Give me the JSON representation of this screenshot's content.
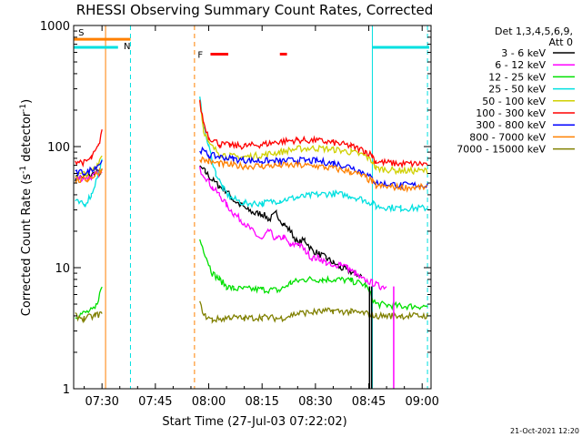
{
  "chart_data": {
    "type": "line",
    "title": "RHESSI Observing Summary Count Rates, Corrected",
    "xlabel": "Start Time (27-Jul-03 07:22:02)",
    "ylabel_main": "Corrected Count Rate (s",
    "ylabel_sup1": "-1",
    "ylabel_mid": " detector",
    "ylabel_sup2": "-1",
    "ylabel_end": ")",
    "yscale": "log",
    "ylim": [
      1,
      1000
    ],
    "xlim_min": [
      442.03,
      542.5
    ],
    "x_ticks": [
      {
        "m": 450,
        "label": "07:30"
      },
      {
        "m": 465,
        "label": "07:45"
      },
      {
        "m": 480,
        "label": "08:00"
      },
      {
        "m": 495,
        "label": "08:15"
      },
      {
        "m": 510,
        "label": "08:30"
      },
      {
        "m": 525,
        "label": "08:45"
      },
      {
        "m": 540,
        "label": "09:00"
      }
    ],
    "y_ticks": [
      {
        "v": 1,
        "label": "1"
      },
      {
        "v": 10,
        "label": "10"
      },
      {
        "v": 100,
        "label": "100"
      },
      {
        "v": 1000,
        "label": "1000"
      }
    ],
    "legend": {
      "header1": "Det 1,3,4,5,6,9,",
      "header2": "Att 0",
      "entries": [
        {
          "label": "3 - 6 keV",
          "color": "#000000"
        },
        {
          "label": "6 - 12 keV",
          "color": "#ff00ff"
        },
        {
          "label": "12 - 25 keV",
          "color": "#00e000"
        },
        {
          "label": "25 - 50 keV",
          "color": "#00e0e0"
        },
        {
          "label": "50 - 100 keV",
          "color": "#d0d000"
        },
        {
          "label": "100 - 300 keV",
          "color": "#ff0000"
        },
        {
          "label": "300 - 800 keV",
          "color": "#0000ff"
        },
        {
          "label": "800 - 7000 keV",
          "color": "#ff8000"
        },
        {
          "label": "7000 - 15000 keV",
          "color": "#808000"
        }
      ]
    },
    "flags": {
      "saa_label": "S",
      "saa_range": [
        442.03,
        458.0
      ],
      "saa_value": 770,
      "saa_color": "#ff8000",
      "night_label": "N",
      "night_ranges": [
        [
          442.03,
          454.5
        ],
        [
          526.0,
          542.0
        ]
      ],
      "night_value": 660,
      "night_color": "#00e0e0",
      "flare_label": "F",
      "flare_ranges": [
        [
          480.5,
          485.5
        ],
        [
          500.0,
          502.0
        ]
      ],
      "flare_value": 580,
      "flare_color": "#ff0000"
    },
    "vlines": [
      {
        "m": 451.0,
        "color": "#ff8000",
        "dashed": false
      },
      {
        "m": 458.0,
        "color": "#00e0e0",
        "dashed": true
      },
      {
        "m": 476.0,
        "color": "#ff8000",
        "dashed": true
      },
      {
        "m": 526.0,
        "color": "#00e0e0",
        "dashed": false
      },
      {
        "m": 541.5,
        "color": "#00e0e0",
        "dashed": true
      }
    ],
    "series": [
      {
        "name": "3 - 6 keV",
        "color": "#000000",
        "segments": [
          [
            [
              442.5,
              55
            ],
            [
              446,
              57
            ],
            [
              448,
              60
            ],
            [
              450,
              62
            ]
          ],
          [
            [
              477.5,
              68
            ],
            [
              479,
              62
            ],
            [
              481,
              53
            ],
            [
              483,
              47
            ],
            [
              485,
              43
            ],
            [
              487,
              36
            ],
            [
              489,
              33
            ],
            [
              491,
              30
            ],
            [
              493,
              28
            ],
            [
              495,
              28
            ],
            [
              497,
              25
            ],
            [
              499,
              28
            ],
            [
              501,
              23
            ],
            [
              503,
              20
            ],
            [
              505,
              16
            ],
            [
              507,
              17
            ],
            [
              509,
              14
            ],
            [
              511,
              13
            ],
            [
              513,
              12
            ],
            [
              515,
              11
            ],
            [
              517,
              10
            ],
            [
              519,
              9.5
            ],
            [
              521,
              9
            ],
            [
              523,
              8.5
            ]
          ]
        ]
      },
      {
        "name": "6 - 12 keV",
        "color": "#ff00ff",
        "segments": [
          [
            [
              442.5,
              55
            ],
            [
              446,
              55
            ],
            [
              448,
              58
            ],
            [
              450,
              60
            ]
          ],
          [
            [
              477.5,
              65
            ],
            [
              479,
              57
            ],
            [
              481,
              46
            ],
            [
              483,
              40
            ],
            [
              485,
              33
            ],
            [
              487,
              28
            ],
            [
              489,
              25
            ],
            [
              491,
              22
            ],
            [
              493,
              19
            ],
            [
              495,
              17
            ],
            [
              497,
              20
            ],
            [
              499,
              17
            ],
            [
              501,
              18
            ],
            [
              503,
              15
            ],
            [
              505,
              16
            ],
            [
              507,
              14
            ],
            [
              509,
              12
            ],
            [
              511,
              12
            ],
            [
              513,
              11
            ],
            [
              515,
              10
            ],
            [
              517,
              11
            ],
            [
              519,
              10
            ],
            [
              521,
              9
            ],
            [
              523,
              8
            ],
            [
              526,
              7.5
            ],
            [
              528,
              7
            ],
            [
              530,
              7
            ]
          ]
        ]
      },
      {
        "name": "12 - 25 keV",
        "color": "#00e000",
        "segments": [
          [
            [
              442.5,
              4
            ],
            [
              448,
              4.5
            ],
            [
              450,
              7
            ]
          ],
          [
            [
              477.5,
              17
            ],
            [
              479,
              13
            ],
            [
              481,
              9
            ],
            [
              483,
              8
            ],
            [
              485,
              7
            ],
            [
              487,
              6.7
            ],
            [
              495,
              6.6
            ],
            [
              500,
              6.5
            ],
            [
              503,
              7.5
            ],
            [
              507,
              8
            ],
            [
              512,
              8
            ],
            [
              516,
              8
            ],
            [
              520,
              7.8
            ],
            [
              524,
              7.2
            ],
            [
              527,
              5
            ],
            [
              534,
              4.8
            ],
            [
              541.5,
              4.8
            ]
          ]
        ]
      },
      {
        "name": "25 - 50 keV",
        "color": "#00e0e0",
        "segments": [
          [
            [
              442.5,
              35
            ],
            [
              445,
              33
            ],
            [
              447,
              40
            ],
            [
              449,
              60
            ],
            [
              450,
              75
            ]
          ],
          [
            [
              477.5,
              250
            ],
            [
              478.5,
              150
            ],
            [
              480,
              100
            ],
            [
              482,
              60
            ],
            [
              484,
              45
            ],
            [
              486,
              38
            ],
            [
              490,
              34
            ],
            [
              495,
              34
            ],
            [
              500,
              36
            ],
            [
              505,
              38
            ],
            [
              510,
              40
            ],
            [
              515,
              41
            ],
            [
              520,
              39
            ],
            [
              524,
              36
            ],
            [
              526,
              34
            ],
            [
              527,
              32
            ],
            [
              534,
              31
            ],
            [
              541.5,
              31
            ]
          ]
        ]
      },
      {
        "name": "50 - 100 keV",
        "color": "#d0d000",
        "segments": [
          [
            [
              442.5,
              58
            ],
            [
              446,
              60
            ],
            [
              448,
              66
            ],
            [
              450,
              85
            ]
          ],
          [
            [
              477.5,
              250
            ],
            [
              478.5,
              140
            ],
            [
              480,
              105
            ],
            [
              483,
              88
            ],
            [
              486,
              83
            ],
            [
              490,
              82
            ],
            [
              495,
              85
            ],
            [
              500,
              90
            ],
            [
              505,
              96
            ],
            [
              510,
              97
            ],
            [
              515,
              95
            ],
            [
              520,
              90
            ],
            [
              524,
              84
            ],
            [
              526,
              75
            ],
            [
              527,
              66
            ],
            [
              534,
              63
            ],
            [
              541.5,
              63
            ]
          ]
        ]
      },
      {
        "name": "100 - 300 keV",
        "color": "#ff0000",
        "segments": [
          [
            [
              442.5,
              76
            ],
            [
              445,
              74
            ],
            [
              447,
              80
            ],
            [
              449,
              100
            ],
            [
              450,
              140
            ]
          ],
          [
            [
              477.5,
              230
            ],
            [
              478.5,
              160
            ],
            [
              480,
              120
            ],
            [
              483,
              105
            ],
            [
              486,
              102
            ],
            [
              490,
              101
            ],
            [
              495,
              104
            ],
            [
              500,
              110
            ],
            [
              505,
              113
            ],
            [
              510,
              112
            ],
            [
              515,
              108
            ],
            [
              520,
              101
            ],
            [
              524,
              92
            ],
            [
              526,
              84
            ],
            [
              527,
              75
            ],
            [
              534,
              72
            ],
            [
              541.5,
              72
            ]
          ]
        ]
      },
      {
        "name": "300 - 800 keV",
        "color": "#0000ff",
        "segments": [
          [
            [
              442.5,
              60
            ],
            [
              446,
              62
            ],
            [
              448,
              68
            ],
            [
              450,
              75
            ]
          ],
          [
            [
              477.5,
              95
            ],
            [
              480,
              85
            ],
            [
              483,
              82
            ],
            [
              487,
              79
            ],
            [
              490,
              77
            ],
            [
              495,
              76
            ],
            [
              500,
              76
            ],
            [
              505,
              77
            ],
            [
              510,
              76
            ],
            [
              515,
              73
            ],
            [
              520,
              68
            ],
            [
              524,
              60
            ],
            [
              526,
              54
            ],
            [
              527,
              50
            ],
            [
              534,
              48
            ],
            [
              541.5,
              48
            ]
          ]
        ]
      },
      {
        "name": "800 - 7000 keV",
        "color": "#ff8000",
        "segments": [
          [
            [
              442.5,
              52
            ],
            [
              446,
              54
            ],
            [
              448,
              58
            ],
            [
              450,
              65
            ]
          ],
          [
            [
              477.5,
              80
            ],
            [
              480,
              75
            ],
            [
              483,
              72
            ],
            [
              487,
              70
            ],
            [
              490,
              69
            ],
            [
              495,
              69
            ],
            [
              500,
              70
            ],
            [
              505,
              70
            ],
            [
              510,
              69
            ],
            [
              515,
              66
            ],
            [
              520,
              62
            ],
            [
              524,
              56
            ],
            [
              526,
              51
            ],
            [
              527,
              47
            ],
            [
              534,
              46
            ],
            [
              541.5,
              46
            ]
          ]
        ]
      },
      {
        "name": "7000 - 15000 keV",
        "color": "#808000",
        "segments": [
          [
            [
              442.5,
              4
            ],
            [
              445,
              3.8
            ],
            [
              448,
              4
            ],
            [
              450,
              4.2
            ]
          ],
          [
            [
              477.5,
              5
            ],
            [
              479,
              4
            ],
            [
              481,
              3.7
            ],
            [
              484,
              3.8
            ],
            [
              486,
              3.9
            ],
            [
              490,
              3.8
            ],
            [
              495,
              3.9
            ],
            [
              500,
              3.8
            ],
            [
              505,
              4.2
            ],
            [
              510,
              4.3
            ],
            [
              515,
              4.4
            ],
            [
              520,
              4.3
            ],
            [
              524,
              4.2
            ],
            [
              527,
              4
            ],
            [
              534,
              4
            ],
            [
              541.5,
              4
            ]
          ]
        ]
      }
    ],
    "dropouts": [
      {
        "m": 525.2,
        "color": "#000000"
      },
      {
        "m": 525.8,
        "color": "#000000"
      },
      {
        "m": 532.0,
        "color": "#ff00ff"
      }
    ]
  },
  "timestamp": "21-Oct-2021 12:20"
}
